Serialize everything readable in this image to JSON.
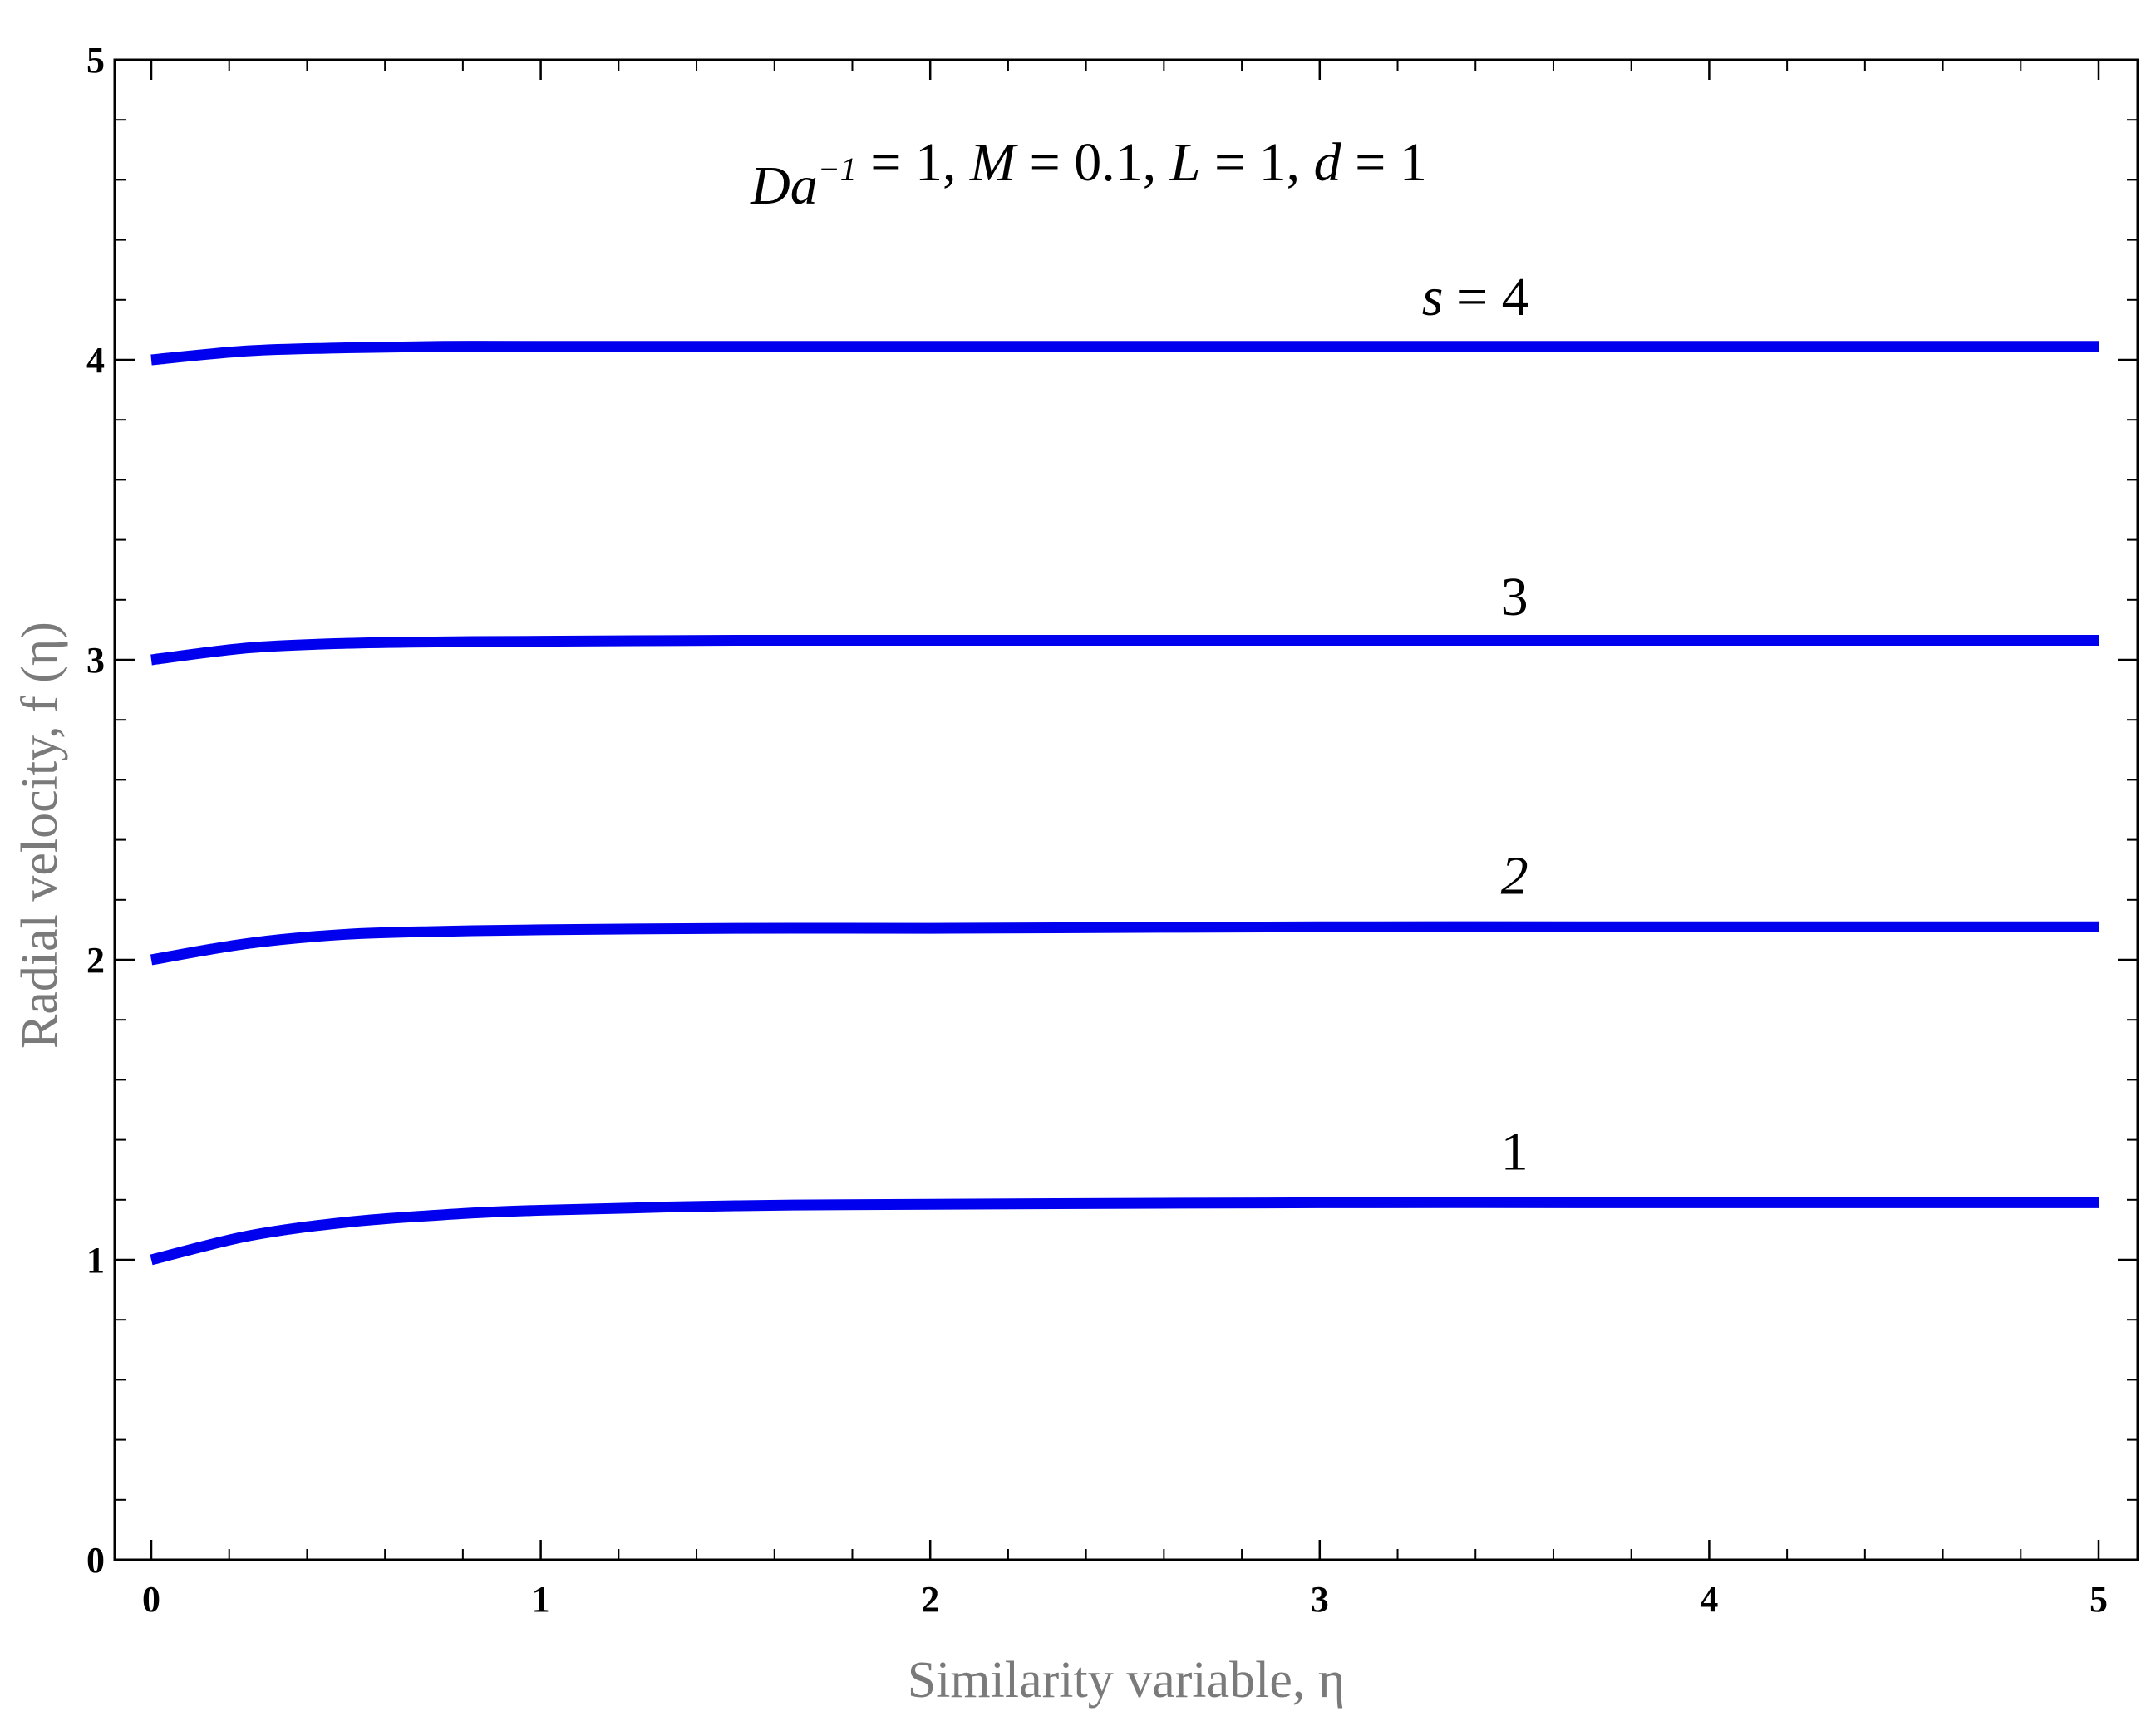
{
  "chart_data": {
    "type": "line",
    "xlabel": "Similarity variable, η",
    "ylabel": "Radial velocity, f (η)",
    "annotation": "Da⁻¹ = 1,  M = 0.1, L = 1, d = 1",
    "xlim": [
      0,
      5
    ],
    "ylim": [
      0,
      5
    ],
    "x_ticks": [
      "0",
      "1",
      "2",
      "3",
      "4",
      "5"
    ],
    "y_ticks": [
      "0",
      "1",
      "2",
      "3",
      "4",
      "5"
    ],
    "grid": false,
    "line_color": "#0000ee",
    "series": [
      {
        "label": "1",
        "italic": false,
        "label_at": [
          3.5,
          1.3
        ],
        "x": [
          0,
          0.25,
          0.5,
          0.75,
          1,
          1.5,
          2,
          3,
          4,
          5
        ],
        "y": [
          1.0,
          1.08,
          1.125,
          1.15,
          1.165,
          1.18,
          1.185,
          1.19,
          1.19,
          1.19
        ]
      },
      {
        "label": "2",
        "italic": true,
        "label_at": [
          3.5,
          2.22
        ],
        "x": [
          0,
          0.25,
          0.5,
          0.75,
          1,
          1.5,
          2,
          3,
          4,
          5
        ],
        "y": [
          2.0,
          2.055,
          2.085,
          2.095,
          2.1,
          2.105,
          2.105,
          2.11,
          2.11,
          2.11
        ]
      },
      {
        "label": "3",
        "italic": false,
        "label_at": [
          3.5,
          3.15
        ],
        "x": [
          0,
          0.25,
          0.5,
          0.75,
          1,
          1.5,
          2,
          3,
          4,
          5
        ],
        "y": [
          3.0,
          3.04,
          3.055,
          3.06,
          3.062,
          3.065,
          3.065,
          3.065,
          3.065,
          3.065
        ]
      },
      {
        "label": "s = 4",
        "italic": false,
        "label_at": [
          3.4,
          4.15
        ],
        "x": [
          0,
          0.25,
          0.5,
          0.75,
          1,
          1.5,
          2,
          3,
          4,
          5
        ],
        "y": [
          4.0,
          4.03,
          4.04,
          4.045,
          4.045,
          4.045,
          4.045,
          4.045,
          4.045,
          4.045
        ]
      }
    ]
  }
}
